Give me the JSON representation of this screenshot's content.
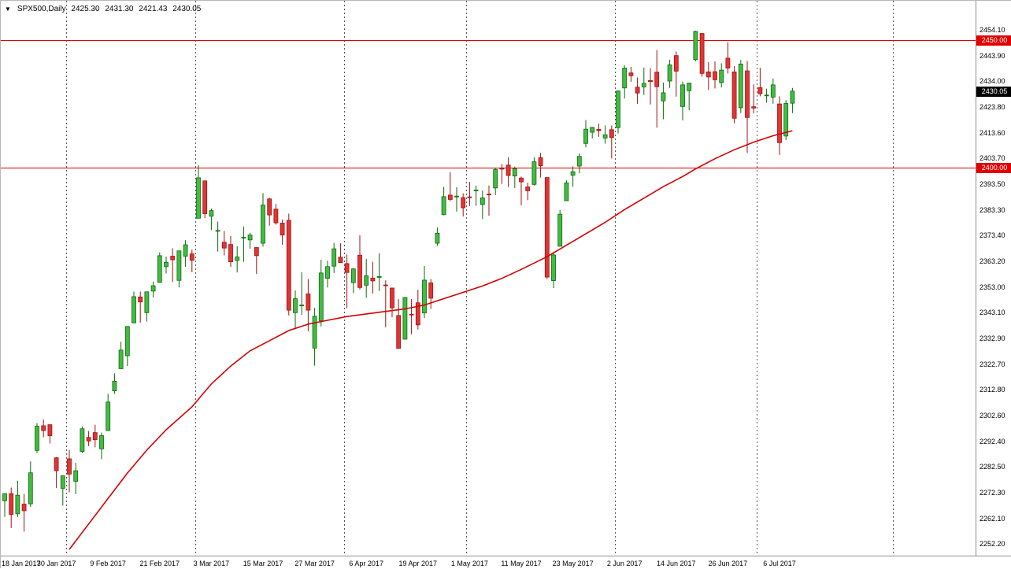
{
  "window": {
    "dropdown_icon": "▼",
    "symbol_timeframe": "SPX500,Daily",
    "ohlc_readout": {
      "open": "2425.30",
      "high": "2431.30",
      "low": "2421.43",
      "close": "2430.05"
    }
  },
  "colors": {
    "background": "#ffffff",
    "up_fill": "#44bb44",
    "up_stroke": "#0a6a0a",
    "down_fill": "#e03535",
    "down_stroke": "#a11010",
    "ma_line": "#d40000",
    "hline": "#e00000",
    "hline_tag_bg": "#e00000",
    "current_tag_bg": "#000000",
    "separator": "#555555",
    "axis_text": "#000000"
  },
  "chart_data": {
    "type": "candlestick",
    "symbol": "SPX500",
    "timeframe": "Daily",
    "title": "SPX500,Daily",
    "ylim": [
      2252.2,
      2465.5
    ],
    "grid": "vertical-period-separators-only",
    "y_axis_labels": [
      "2454.10",
      "2443.90",
      "2434.00",
      "2423.80",
      "2413.60",
      "2403.70",
      "2393.50",
      "2383.30",
      "2373.40",
      "2363.20",
      "2353.00",
      "2343.10",
      "2332.90",
      "2322.70",
      "2312.80",
      "2302.60",
      "2292.40",
      "2282.50",
      "2272.30",
      "2262.10",
      "2252.20"
    ],
    "x_axis_labels": [
      {
        "index": 0,
        "label": "18 Jan 2017"
      },
      {
        "index": 8,
        "label": "30 Jan 2017"
      },
      {
        "index": 16,
        "label": "9 Feb 2017"
      },
      {
        "index": 24,
        "label": "21 Feb 2017"
      },
      {
        "index": 32,
        "label": "3 Mar 2017"
      },
      {
        "index": 40,
        "label": "15 Mar 2017"
      },
      {
        "index": 48,
        "label": "27 Mar 2017"
      },
      {
        "index": 56,
        "label": "6 Apr 2017"
      },
      {
        "index": 64,
        "label": "19 Apr 2017"
      },
      {
        "index": 72,
        "label": "1 May 2017"
      },
      {
        "index": 80,
        "label": "11 May 2017"
      },
      {
        "index": 88,
        "label": "23 May 2017"
      },
      {
        "index": 96,
        "label": "2 Jun 2017"
      },
      {
        "index": 104,
        "label": "14 Jun 2017"
      },
      {
        "index": 112,
        "label": "26 Jun 2017"
      },
      {
        "index": 120,
        "label": "6 Jul 2017"
      }
    ],
    "separators_idx": [
      10,
      30,
      53,
      72,
      95,
      117,
      138
    ],
    "horizontal_lines": [
      {
        "price": 2450.0,
        "label": "2450.00"
      },
      {
        "price": 2400.0,
        "label": "2400.00"
      }
    ],
    "current_price": {
      "value": 2430.05,
      "label": "2430.05"
    },
    "candles": [
      [
        2269.1,
        2272.0,
        2262.8,
        2271.9
      ],
      [
        2271.9,
        2274.3,
        2258.4,
        2263.7
      ],
      [
        2264.0,
        2277.0,
        2262.8,
        2271.3
      ],
      [
        2267.8,
        2271.8,
        2257.0,
        2265.2
      ],
      [
        2267.9,
        2284.6,
        2266.7,
        2280.1
      ],
      [
        2288.9,
        2299.6,
        2287.9,
        2298.4
      ],
      [
        2298.6,
        2301.0,
        2294.1,
        2296.7
      ],
      [
        2299.0,
        2299.0,
        2291.6,
        2294.7
      ],
      [
        2286.0,
        2286.3,
        2274.1,
        2280.9
      ],
      [
        2274.0,
        2279.1,
        2267.2,
        2278.9
      ],
      [
        2285.6,
        2289.1,
        2272.4,
        2279.6
      ],
      [
        2276.7,
        2284.0,
        2271.7,
        2280.9
      ],
      [
        2288.5,
        2298.3,
        2287.9,
        2297.4
      ],
      [
        2294.0,
        2296.5,
        2290.6,
        2292.6
      ],
      [
        2295.9,
        2299.0,
        2290.1,
        2293.1
      ],
      [
        2289.5,
        2295.9,
        2285.4,
        2294.7
      ],
      [
        2296.7,
        2311.1,
        2296.6,
        2307.9
      ],
      [
        2312.3,
        2319.2,
        2311.1,
        2316.1
      ],
      [
        2321.0,
        2331.6,
        2321.0,
        2328.3
      ],
      [
        2326.1,
        2337.6,
        2322.1,
        2337.6
      ],
      [
        2339.0,
        2351.3,
        2338.9,
        2349.3
      ],
      [
        2349.2,
        2351.3,
        2339.1,
        2347.2
      ],
      [
        2343.0,
        2351.3,
        2339.5,
        2351.2
      ],
      [
        2351.5,
        2355.2,
        2349.0,
        2353.6
      ],
      [
        2354.9,
        2366.7,
        2354.9,
        2365.4
      ],
      [
        2361.1,
        2365.0,
        2358.4,
        2362.8
      ],
      [
        2365.2,
        2368.3,
        2355.1,
        2363.8
      ],
      [
        2355.7,
        2367.3,
        2352.9,
        2367.3
      ],
      [
        2365.2,
        2371.5,
        2361.0,
        2369.7
      ],
      [
        2366.1,
        2367.8,
        2358.9,
        2363.6
      ],
      [
        2380.1,
        2401.0,
        2380.1,
        2396.0
      ],
      [
        2394.8,
        2394.8,
        2380.2,
        2381.9
      ],
      [
        2380.9,
        2383.9,
        2375.4,
        2383.1
      ],
      [
        2375.2,
        2378.8,
        2367.0,
        2375.3
      ],
      [
        2370.7,
        2375.1,
        2365.5,
        2368.4
      ],
      [
        2369.8,
        2373.1,
        2361.0,
        2363.0
      ],
      [
        2363.5,
        2369.1,
        2358.8,
        2364.9
      ],
      [
        2372.5,
        2376.9,
        2363.0,
        2372.6
      ],
      [
        2371.6,
        2374.4,
        2368.1,
        2373.5
      ],
      [
        2368.6,
        2368.6,
        2358.2,
        2365.4
      ],
      [
        2370.3,
        2390.0,
        2368.9,
        2385.3
      ],
      [
        2387.7,
        2388.1,
        2377.2,
        2381.4
      ],
      [
        2383.7,
        2385.7,
        2377.6,
        2378.3
      ],
      [
        2378.2,
        2379.6,
        2369.7,
        2373.5
      ],
      [
        2379.3,
        2381.9,
        2341.9,
        2344.0
      ],
      [
        2343.0,
        2351.8,
        2336.5,
        2348.5
      ],
      [
        2345.7,
        2358.9,
        2342.1,
        2346.0
      ],
      [
        2350.4,
        2356.2,
        2335.7,
        2344.0
      ],
      [
        2329.1,
        2344.9,
        2322.2,
        2341.6
      ],
      [
        2339.8,
        2363.8,
        2337.6,
        2358.6
      ],
      [
        2356.5,
        2363.4,
        2352.9,
        2361.1
      ],
      [
        2361.3,
        2370.4,
        2358.6,
        2368.1
      ],
      [
        2364.8,
        2370.3,
        2362.6,
        2362.7
      ],
      [
        2362.3,
        2365.9,
        2344.7,
        2358.8
      ],
      [
        2354.8,
        2360.5,
        2350.7,
        2360.2
      ],
      [
        2365.6,
        2373.4,
        2352.1,
        2352.9
      ],
      [
        2353.8,
        2364.2,
        2348.9,
        2357.5
      ],
      [
        2356.6,
        2363.0,
        2350.5,
        2355.5
      ],
      [
        2357.2,
        2366.4,
        2351.5,
        2357.2
      ],
      [
        2353.9,
        2355.7,
        2337.3,
        2353.8
      ],
      [
        2352.7,
        2352.7,
        2341.2,
        2344.9
      ],
      [
        2341.9,
        2348.3,
        2328.9,
        2329.0
      ],
      [
        2332.6,
        2349.1,
        2332.5,
        2349.0
      ],
      [
        2342.4,
        2348.4,
        2334.5,
        2342.2
      ],
      [
        2346.9,
        2352.0,
        2336.4,
        2338.2
      ],
      [
        2342.9,
        2361.4,
        2340.9,
        2355.8
      ],
      [
        2354.7,
        2356.2,
        2344.5,
        2348.7
      ],
      [
        2370.3,
        2376.5,
        2369.2,
        2374.2
      ],
      [
        2381.5,
        2392.4,
        2381.3,
        2388.6
      ],
      [
        2389.2,
        2398.2,
        2386.8,
        2387.5
      ],
      [
        2388.7,
        2392.3,
        2382.7,
        2388.8
      ],
      [
        2388.2,
        2389.9,
        2380.8,
        2384.2
      ],
      [
        2388.5,
        2394.4,
        2384.9,
        2388.3
      ],
      [
        2391.2,
        2392.9,
        2385.0,
        2391.2
      ],
      [
        2385.5,
        2391.0,
        2379.8,
        2388.1
      ],
      [
        2389.6,
        2393.0,
        2381.1,
        2389.5
      ],
      [
        2392.0,
        2399.9,
        2389.2,
        2399.3
      ],
      [
        2399.9,
        2401.4,
        2393.6,
        2399.4
      ],
      [
        2401.0,
        2404.1,
        2392.4,
        2396.9
      ],
      [
        2396.7,
        2400.4,
        2392.0,
        2399.6
      ],
      [
        2395.9,
        2396.5,
        2385.2,
        2394.4
      ],
      [
        2392.4,
        2394.1,
        2387.2,
        2390.9
      ],
      [
        2393.4,
        2404.1,
        2393.0,
        2402.3
      ],
      [
        2403.9,
        2405.8,
        2396.1,
        2400.7
      ],
      [
        2396.1,
        2396.1,
        2356.2,
        2357.0
      ],
      [
        2355.6,
        2367.0,
        2352.7,
        2365.7
      ],
      [
        2369.1,
        2383.4,
        2369.1,
        2381.7
      ],
      [
        2387.0,
        2395.0,
        2386.9,
        2394.0
      ],
      [
        2397.0,
        2400.5,
        2392.5,
        2398.4
      ],
      [
        2400.6,
        2405.6,
        2397.8,
        2404.4
      ],
      [
        2409.5,
        2418.7,
        2408.0,
        2415.1
      ],
      [
        2413.9,
        2416.0,
        2411.5,
        2415.8
      ],
      [
        2415.0,
        2417.3,
        2412.1,
        2414.5
      ],
      [
        2411.6,
        2416.6,
        2409.4,
        2412.9
      ],
      [
        2414.9,
        2416.5,
        2403.6,
        2411.8
      ],
      [
        2415.7,
        2430.3,
        2413.4,
        2430.1
      ],
      [
        2431.3,
        2440.2,
        2427.2,
        2439.1
      ],
      [
        2437.2,
        2439.6,
        2433.7,
        2436.1
      ],
      [
        2431.6,
        2435.4,
        2425.1,
        2429.3
      ],
      [
        2431.7,
        2439.3,
        2428.5,
        2433.1
      ],
      [
        2434.2,
        2439.1,
        2424.8,
        2433.8
      ],
      [
        2437.5,
        2446.2,
        2415.7,
        2431.8
      ],
      [
        2426.2,
        2433.4,
        2419.0,
        2429.4
      ],
      [
        2434.0,
        2442.4,
        2431.3,
        2440.4
      ],
      [
        2444.0,
        2445.6,
        2427.9,
        2437.9
      ],
      [
        2424.0,
        2433.8,
        2418.5,
        2432.5
      ],
      [
        2430.2,
        2433.2,
        2422.5,
        2433.2
      ],
      [
        2442.4,
        2453.8,
        2441.8,
        2453.5
      ],
      [
        2452.7,
        2452.7,
        2435.7,
        2437.0
      ],
      [
        2437.6,
        2441.4,
        2430.5,
        2435.6
      ],
      [
        2437.7,
        2441.7,
        2431.1,
        2434.5
      ],
      [
        2433.4,
        2441.0,
        2431.5,
        2438.3
      ],
      [
        2443.0,
        2449.3,
        2437.0,
        2439.1
      ],
      [
        2437.6,
        2439.9,
        2417.4,
        2419.4
      ],
      [
        2423.5,
        2442.3,
        2421.4,
        2440.7
      ],
      [
        2438.0,
        2441.9,
        2405.7,
        2419.7
      ],
      [
        2423.9,
        2432.7,
        2421.3,
        2423.4
      ],
      [
        2431.4,
        2439.2,
        2428.0,
        2429.0
      ],
      [
        2428.5,
        2431.0,
        2425.5,
        2428.5
      ],
      [
        2427.7,
        2435.0,
        2425.1,
        2432.5
      ],
      [
        2425.0,
        2428.0,
        2405.0,
        2409.8
      ],
      [
        2412.4,
        2426.5,
        2410.8,
        2425.2
      ],
      [
        2425.3,
        2431.3,
        2421.4,
        2430.05
      ]
    ],
    "ma_line": {
      "name": "moving-average",
      "points": [
        [
          10,
          2250
        ],
        [
          13,
          2260
        ],
        [
          16,
          2270
        ],
        [
          19,
          2280
        ],
        [
          22,
          2289
        ],
        [
          25,
          2297
        ],
        [
          29,
          2306
        ],
        [
          32,
          2315
        ],
        [
          35,
          2322
        ],
        [
          38,
          2328
        ],
        [
          41,
          2332
        ],
        [
          44,
          2336
        ],
        [
          47,
          2338.5
        ],
        [
          50,
          2340
        ],
        [
          53,
          2341.5
        ],
        [
          56,
          2342.5
        ],
        [
          59,
          2343.5
        ],
        [
          62,
          2344.5
        ],
        [
          65,
          2346
        ],
        [
          68,
          2348.5
        ],
        [
          71,
          2351
        ],
        [
          74,
          2353.5
        ],
        [
          77,
          2356.5
        ],
        [
          80,
          2360
        ],
        [
          84,
          2365
        ],
        [
          87,
          2369.5
        ],
        [
          90,
          2374
        ],
        [
          93,
          2378.5
        ],
        [
          96,
          2383.5
        ],
        [
          99,
          2388
        ],
        [
          102,
          2392.5
        ],
        [
          105,
          2396.5
        ],
        [
          107,
          2399.5
        ],
        [
          110,
          2403.5
        ],
        [
          113,
          2407
        ],
        [
          116,
          2410
        ],
        [
          119,
          2412.5
        ],
        [
          122,
          2414.5
        ]
      ]
    }
  }
}
